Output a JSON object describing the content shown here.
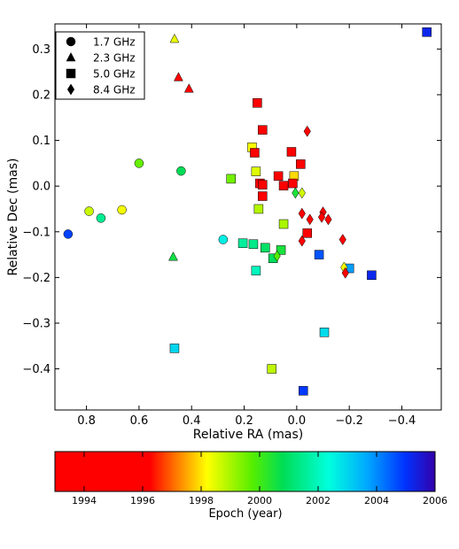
{
  "chart_data": {
    "type": "scatter",
    "xlabel": "Relative RA (mas)",
    "ylabel": "Relative Dec (mas)",
    "xlim": [
      0.92,
      -0.55
    ],
    "ylim": [
      -0.49,
      0.355
    ],
    "xticks": [
      0.8,
      0.6,
      0.4,
      0.2,
      0.0,
      -0.2,
      -0.4
    ],
    "xtick_labels": [
      "0.8",
      "0.6",
      "0.4",
      "0.2",
      "0.0",
      "−0.2",
      "−0.4"
    ],
    "yticks": [
      0.3,
      0.2,
      0.1,
      0.0,
      -0.1,
      -0.2,
      -0.3,
      -0.4
    ],
    "ytick_labels": [
      "0.3",
      "0.2",
      "0.1",
      "0.0",
      "−0.1",
      "−0.2",
      "−0.3",
      "−0.4"
    ],
    "legend_position": "top-left",
    "legend": [
      {
        "marker": "circle",
        "label": "1.7 GHz"
      },
      {
        "marker": "triangle",
        "label": "2.3 GHz"
      },
      {
        "marker": "square",
        "label": "5.0 GHz"
      },
      {
        "marker": "diamond",
        "label": "8.4 GHz"
      }
    ],
    "colorbar": {
      "label": "Epoch (year)",
      "range": [
        1993,
        2006
      ],
      "ticks": [
        1994,
        1996,
        1998,
        2000,
        2002,
        2004,
        2006
      ],
      "colormap": [
        {
          "t": 0.0,
          "color": "#ff0000"
        },
        {
          "t": 0.25,
          "color": "#ff0000"
        },
        {
          "t": 0.32,
          "color": "#ff7a00"
        },
        {
          "t": 0.4,
          "color": "#ffff00"
        },
        {
          "t": 0.52,
          "color": "#55ee00"
        },
        {
          "t": 0.6,
          "color": "#00dd55"
        },
        {
          "t": 0.72,
          "color": "#00ffdd"
        },
        {
          "t": 0.82,
          "color": "#00aaff"
        },
        {
          "t": 0.92,
          "color": "#0033ff"
        },
        {
          "t": 1.0,
          "color": "#3300aa"
        }
      ]
    },
    "series": [
      {
        "freq": "1.7 GHz",
        "marker": "circle",
        "points": [
          {
            "x": 0.87,
            "y": -0.105,
            "epoch": 2004.8
          },
          {
            "x": 0.79,
            "y": -0.055,
            "epoch": 1998.7
          },
          {
            "x": 0.745,
            "y": -0.07,
            "epoch": 2001.5
          },
          {
            "x": 0.665,
            "y": -0.052,
            "epoch": 1998.3
          },
          {
            "x": 0.6,
            "y": 0.05,
            "epoch": 1999.6
          },
          {
            "x": 0.44,
            "y": 0.033,
            "epoch": 2000.8
          },
          {
            "x": 0.28,
            "y": -0.117,
            "epoch": 2002.6
          }
        ]
      },
      {
        "freq": "2.3 GHz",
        "marker": "triangle",
        "points": [
          {
            "x": 0.465,
            "y": 0.322,
            "epoch": 1998.4
          },
          {
            "x": 0.45,
            "y": 0.238,
            "epoch": 1995.0
          },
          {
            "x": 0.41,
            "y": 0.213,
            "epoch": 1995.0
          },
          {
            "x": 0.47,
            "y": -0.155,
            "epoch": 2000.6
          }
        ]
      },
      {
        "freq": "5.0 GHz",
        "marker": "square",
        "points": [
          {
            "x": -0.495,
            "y": 0.337,
            "epoch": 2005.2
          },
          {
            "x": 0.15,
            "y": 0.182,
            "epoch": 1995.5
          },
          {
            "x": 0.13,
            "y": 0.123,
            "epoch": 1995.5
          },
          {
            "x": 0.17,
            "y": 0.085,
            "epoch": 1998.2
          },
          {
            "x": 0.16,
            "y": 0.073,
            "epoch": 1995.5
          },
          {
            "x": 0.02,
            "y": 0.075,
            "epoch": 1995.5
          },
          {
            "x": -0.015,
            "y": 0.048,
            "epoch": 1995.5
          },
          {
            "x": 0.155,
            "y": 0.032,
            "epoch": 1998.5
          },
          {
            "x": 0.07,
            "y": 0.022,
            "epoch": 1995.5
          },
          {
            "x": 0.01,
            "y": 0.022,
            "epoch": 1997.9
          },
          {
            "x": 0.25,
            "y": 0.016,
            "epoch": 1999.5
          },
          {
            "x": 0.14,
            "y": 0.006,
            "epoch": 1995.5
          },
          {
            "x": 0.13,
            "y": 0.003,
            "epoch": 1995.5
          },
          {
            "x": 0.05,
            "y": 0.001,
            "epoch": 1995.5
          },
          {
            "x": 0.015,
            "y": 0.006,
            "epoch": 1995.5
          },
          {
            "x": 0.13,
            "y": -0.022,
            "epoch": 1995.5
          },
          {
            "x": 0.145,
            "y": -0.05,
            "epoch": 1998.9
          },
          {
            "x": 0.05,
            "y": -0.083,
            "epoch": 1999.0
          },
          {
            "x": -0.04,
            "y": -0.103,
            "epoch": 1995.5
          },
          {
            "x": 0.205,
            "y": -0.125,
            "epoch": 2001.6
          },
          {
            "x": 0.165,
            "y": -0.127,
            "epoch": 2001.4
          },
          {
            "x": 0.12,
            "y": -0.135,
            "epoch": 2001.0
          },
          {
            "x": 0.06,
            "y": -0.14,
            "epoch": 2000.5
          },
          {
            "x": 0.09,
            "y": -0.158,
            "epoch": 2000.9
          },
          {
            "x": -0.085,
            "y": -0.15,
            "epoch": 2004.6
          },
          {
            "x": -0.2,
            "y": -0.18,
            "epoch": 2003.8
          },
          {
            "x": -0.285,
            "y": -0.195,
            "epoch": 2005.2
          },
          {
            "x": 0.155,
            "y": -0.185,
            "epoch": 2002.0
          },
          {
            "x": 0.465,
            "y": -0.355,
            "epoch": 2003.0
          },
          {
            "x": -0.105,
            "y": -0.32,
            "epoch": 2002.9
          },
          {
            "x": 0.095,
            "y": -0.4,
            "epoch": 1998.8
          },
          {
            "x": -0.025,
            "y": -0.448,
            "epoch": 2004.9
          }
        ]
      },
      {
        "freq": "8.4 GHz",
        "marker": "diamond",
        "points": [
          {
            "x": -0.04,
            "y": 0.12,
            "epoch": 1995.5
          },
          {
            "x": 0.005,
            "y": -0.015,
            "epoch": 2000.5
          },
          {
            "x": -0.02,
            "y": -0.015,
            "epoch": 1998.6
          },
          {
            "x": -0.02,
            "y": -0.06,
            "epoch": 1995.5
          },
          {
            "x": -0.05,
            "y": -0.073,
            "epoch": 1995.5
          },
          {
            "x": -0.1,
            "y": -0.057,
            "epoch": 1995.5
          },
          {
            "x": -0.095,
            "y": -0.068,
            "epoch": 1995.5
          },
          {
            "x": -0.12,
            "y": -0.073,
            "epoch": 1995.5
          },
          {
            "x": -0.02,
            "y": -0.12,
            "epoch": 1995.5
          },
          {
            "x": -0.175,
            "y": -0.117,
            "epoch": 1995.5
          },
          {
            "x": 0.075,
            "y": -0.153,
            "epoch": 1999.8
          },
          {
            "x": -0.18,
            "y": -0.178,
            "epoch": 1998.3
          },
          {
            "x": -0.185,
            "y": -0.19,
            "epoch": 1995.5
          }
        ]
      }
    ]
  }
}
